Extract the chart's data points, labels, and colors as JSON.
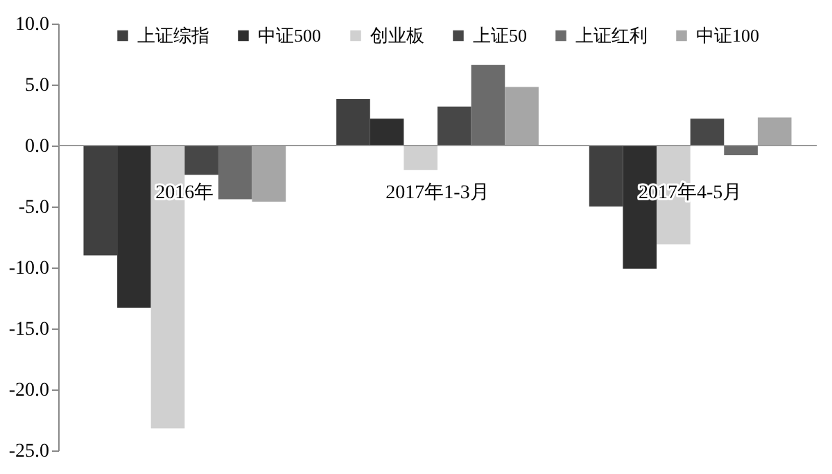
{
  "chart_data": {
    "type": "bar",
    "categories": [
      "2016年",
      "2017年1-3月",
      "2017年4-5月"
    ],
    "series": [
      {
        "name": "上证综指",
        "color": "#404040",
        "values": [
          -9.0,
          3.8,
          -5.0
        ]
      },
      {
        "name": "中证500",
        "color": "#2e2e2e",
        "values": [
          -13.3,
          2.2,
          -10.1
        ]
      },
      {
        "name": "创业板",
        "color": "#d0d0d0",
        "values": [
          -23.2,
          -2.0,
          -8.1
        ]
      },
      {
        "name": "上证50",
        "color": "#474747",
        "values": [
          -2.4,
          3.2,
          2.2
        ]
      },
      {
        "name": "上证红利",
        "color": "#6b6b6b",
        "values": [
          -4.4,
          6.6,
          -0.8
        ]
      },
      {
        "name": "中证100",
        "color": "#a6a6a6",
        "values": [
          -4.6,
          4.8,
          2.3
        ]
      }
    ],
    "ylim": [
      -25,
      10
    ],
    "yticks": [
      {
        "value": -25,
        "label": "-25.0"
      },
      {
        "value": -20,
        "label": "-20.0"
      },
      {
        "value": -15,
        "label": "-15.0"
      },
      {
        "value": -10,
        "label": "-10.0"
      },
      {
        "value": -5,
        "label": "-5.0"
      },
      {
        "value": 0,
        "label": "0.0"
      },
      {
        "value": 5,
        "label": "5.0"
      },
      {
        "value": 10,
        "label": "10.0"
      }
    ],
    "grid": false,
    "legend": "top"
  }
}
